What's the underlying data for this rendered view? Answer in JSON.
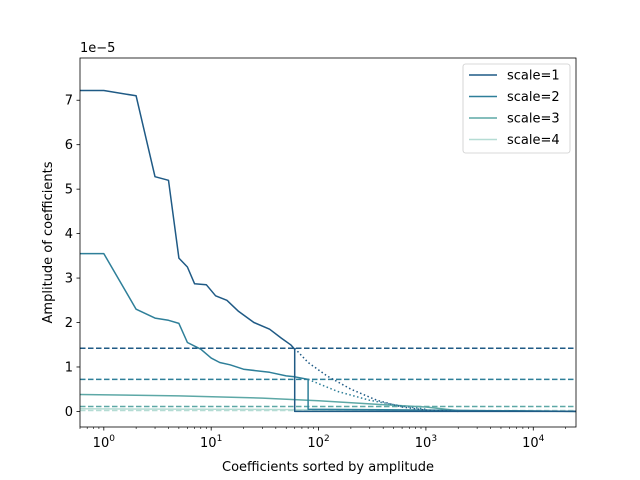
{
  "chart_data": {
    "type": "line",
    "xlabel": "Coefficients sorted by amplitude",
    "ylabel": "Amplitude of coefficients",
    "y_offset_text": "1e−5",
    "x_scale": "log",
    "xlim": [
      0.6,
      25000
    ],
    "ylim": [
      -0.35,
      7.95
    ],
    "y_unit_multiplier": "1e-5",
    "grid": false,
    "legend_position": "top-right",
    "x_ticks": [
      {
        "value": 1,
        "base": "10",
        "exp": "0"
      },
      {
        "value": 10,
        "base": "10",
        "exp": "1"
      },
      {
        "value": 100,
        "base": "10",
        "exp": "2"
      },
      {
        "value": 1000,
        "base": "10",
        "exp": "3"
      },
      {
        "value": 10000,
        "base": "10",
        "exp": "4"
      }
    ],
    "y_ticks": [
      0,
      1,
      2,
      3,
      4,
      5,
      6,
      7
    ],
    "series": [
      {
        "name": "scale=1",
        "color": "#1f5a85",
        "threshold": 1.42,
        "solid": [
          [
            0.6,
            7.22
          ],
          [
            1,
            7.22
          ],
          [
            2,
            7.1
          ],
          [
            3,
            5.28
          ],
          [
            4,
            5.2
          ],
          [
            5,
            3.45
          ],
          [
            6,
            3.25
          ],
          [
            7,
            2.87
          ],
          [
            9,
            2.85
          ],
          [
            11,
            2.6
          ],
          [
            14,
            2.5
          ],
          [
            18,
            2.25
          ],
          [
            25,
            2.0
          ],
          [
            35,
            1.85
          ],
          [
            45,
            1.65
          ],
          [
            55,
            1.5
          ],
          [
            60,
            1.4
          ],
          [
            60,
            0.0
          ],
          [
            25000,
            0.0
          ]
        ],
        "dotted": [
          [
            60,
            1.42
          ],
          [
            80,
            1.1
          ],
          [
            120,
            0.8
          ],
          [
            200,
            0.5
          ],
          [
            350,
            0.25
          ],
          [
            600,
            0.1
          ],
          [
            1000,
            0.03
          ],
          [
            2000,
            0.0
          ]
        ]
      },
      {
        "name": "scale=2",
        "color": "#2e7f99",
        "threshold": 0.72,
        "solid": [
          [
            0.6,
            3.55
          ],
          [
            1,
            3.55
          ],
          [
            2,
            2.3
          ],
          [
            3,
            2.1
          ],
          [
            4,
            2.05
          ],
          [
            5,
            1.98
          ],
          [
            6,
            1.55
          ],
          [
            8,
            1.4
          ],
          [
            10,
            1.2
          ],
          [
            12,
            1.1
          ],
          [
            15,
            1.05
          ],
          [
            20,
            0.95
          ],
          [
            35,
            0.88
          ],
          [
            50,
            0.8
          ],
          [
            60,
            0.78
          ],
          [
            80,
            0.72
          ],
          [
            80,
            0.05
          ],
          [
            1000,
            0.03
          ],
          [
            25000,
            0.0
          ]
        ],
        "dotted": [
          [
            80,
            0.72
          ],
          [
            150,
            0.45
          ],
          [
            300,
            0.25
          ],
          [
            600,
            0.12
          ],
          [
            1000,
            0.05
          ]
        ]
      },
      {
        "name": "scale=3",
        "color": "#5da8a6",
        "threshold": 0.11,
        "solid": [
          [
            0.6,
            0.38
          ],
          [
            5,
            0.35
          ],
          [
            30,
            0.3
          ],
          [
            100,
            0.24
          ],
          [
            300,
            0.17
          ],
          [
            700,
            0.12
          ],
          [
            1000,
            0.1
          ],
          [
            2000,
            0.02
          ],
          [
            25000,
            0.0
          ]
        ],
        "dotted": []
      },
      {
        "name": "scale=4",
        "color": "#b5dcd4",
        "threshold": 0.02,
        "solid": [
          [
            0.6,
            0.06
          ],
          [
            10,
            0.05
          ],
          [
            100,
            0.04
          ],
          [
            1000,
            0.03
          ],
          [
            5000,
            0.01
          ],
          [
            25000,
            0.0
          ]
        ],
        "dotted": []
      }
    ]
  }
}
